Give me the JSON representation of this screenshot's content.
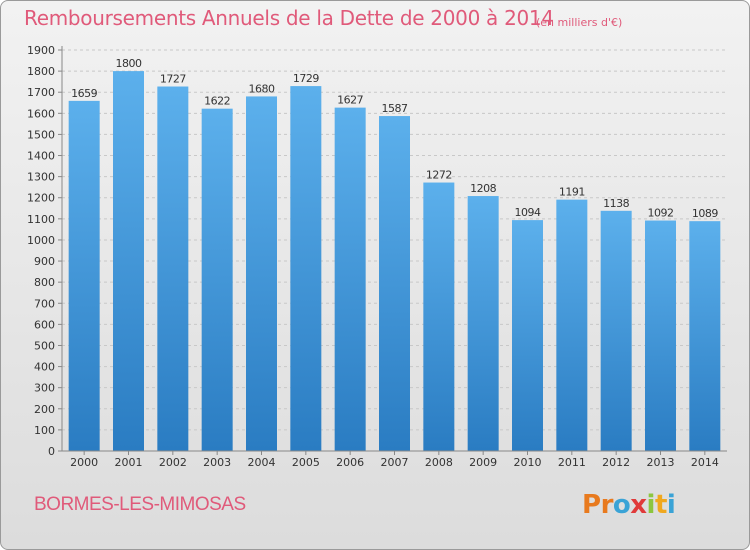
{
  "header": {
    "title": "Remboursements Annuels de la Dette de 2000 à 2014",
    "unit": "(en milliers d'€)"
  },
  "footer": {
    "city": "BORMES-LES-MIMOSAS",
    "logo": [
      "P",
      "r",
      "o",
      "x",
      "i",
      "t",
      "i"
    ]
  },
  "colors": {
    "title": "#e05a7a",
    "bar_top": "#5cb0ec",
    "bar_bottom": "#2a7cc2",
    "logo": [
      "#e87a1e",
      "#e87a1e",
      "#3aa3d6",
      "#e03a3a",
      "#8cc63f",
      "#f0a81e",
      "#3aa3d6"
    ]
  },
  "chart_data": {
    "type": "bar",
    "categories": [
      "2000",
      "2001",
      "2002",
      "2003",
      "2004",
      "2005",
      "2006",
      "2007",
      "2008",
      "2009",
      "2010",
      "2011",
      "2012",
      "2013",
      "2014"
    ],
    "values": [
      1659,
      1800,
      1727,
      1622,
      1680,
      1729,
      1627,
      1587,
      1272,
      1208,
      1094,
      1191,
      1138,
      1092,
      1089
    ],
    "ylim": [
      0,
      1900
    ],
    "yticks": [
      "0",
      "100",
      "200",
      "300",
      "400",
      "500",
      "600",
      "700",
      "800",
      "900",
      "1000",
      "1100",
      "1200",
      "1300",
      "1400",
      "1500",
      "1600",
      "1700",
      "1800",
      "1900"
    ],
    "grid": true,
    "legend": "none"
  }
}
